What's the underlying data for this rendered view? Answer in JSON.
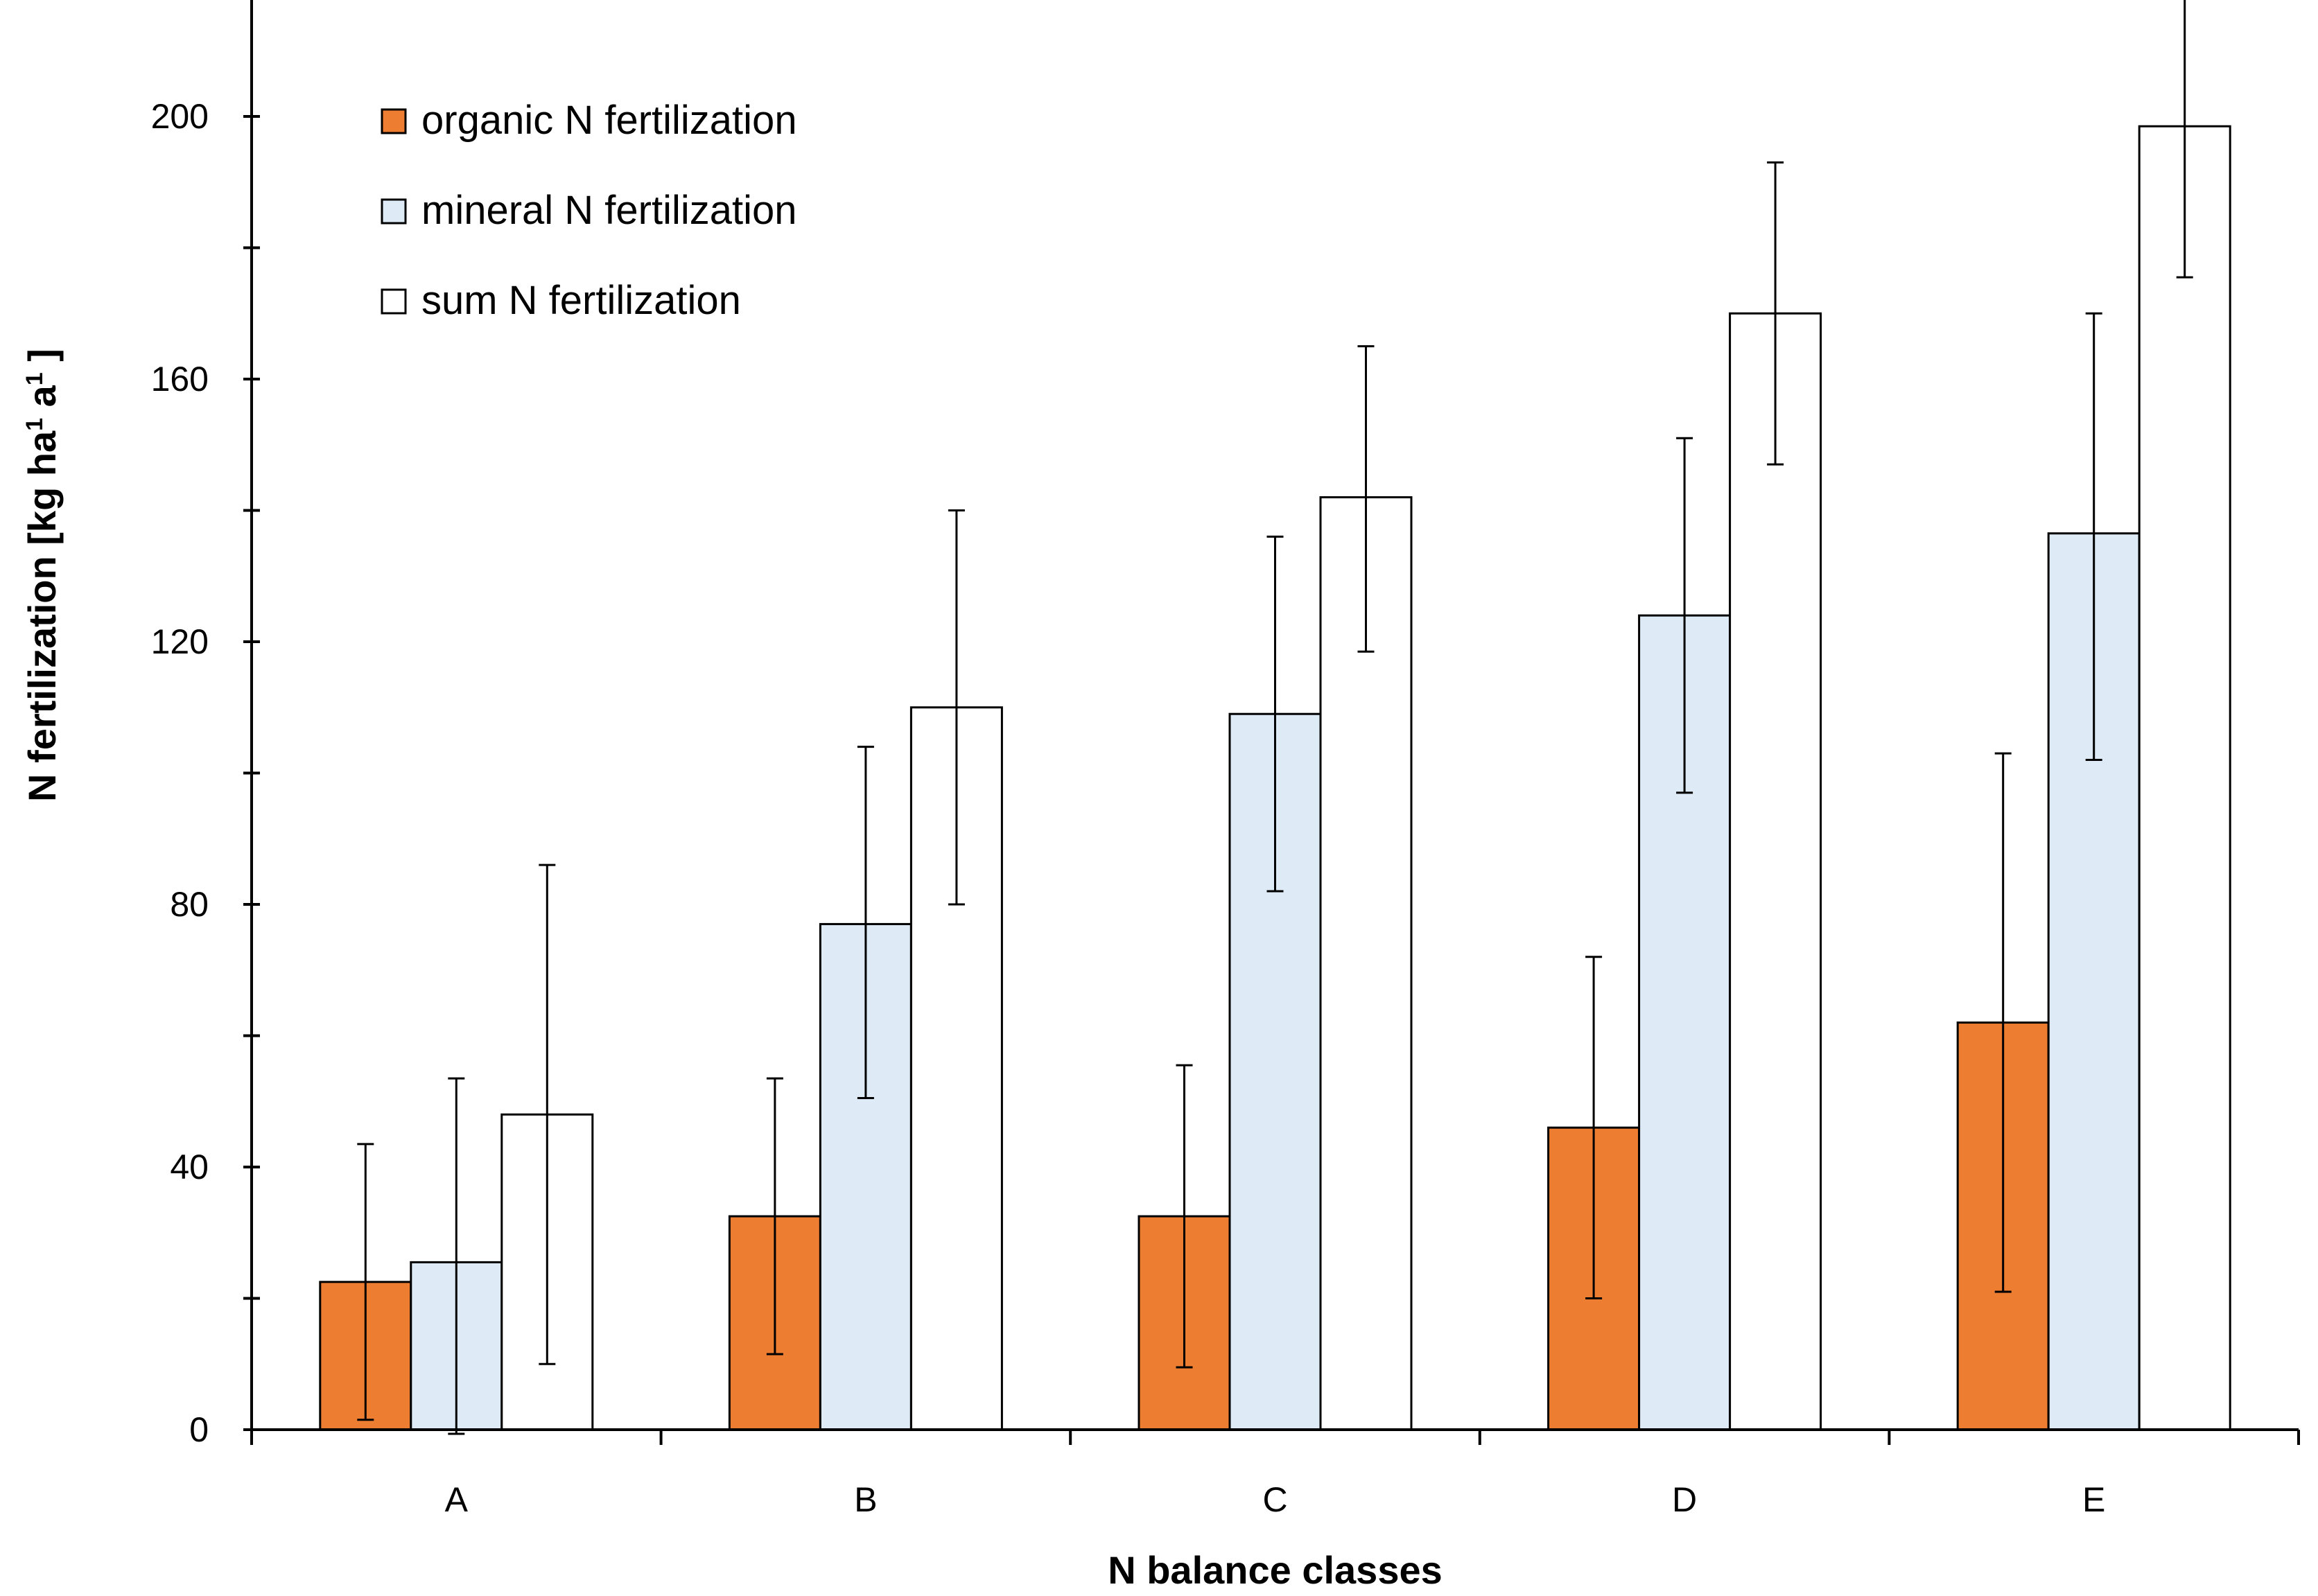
{
  "chart_data": {
    "type": "bar",
    "categories": [
      "A",
      "B",
      "C",
      "D",
      "E"
    ],
    "series": [
      {
        "name": "organic N fertilization",
        "color": "#ED7D31",
        "values": [
          22.5,
          32.5,
          32.5,
          46,
          62
        ],
        "error_low": [
          1.5,
          11.5,
          9.5,
          20,
          21
        ],
        "error_high": [
          43.5,
          53.5,
          55.5,
          72,
          103
        ]
      },
      {
        "name": "mineral N fertilization",
        "color": "#DEEBF7",
        "values": [
          25.5,
          77,
          109,
          124,
          136.5
        ],
        "error_low": [
          -2.5,
          50.5,
          82,
          97,
          102
        ],
        "error_high": [
          53.5,
          104,
          136,
          151,
          170
        ]
      },
      {
        "name": "sum N fertilization",
        "color": "#FFFFFF",
        "values": [
          48,
          110,
          142,
          170,
          198.5
        ],
        "error_low": [
          10,
          80,
          118.5,
          147,
          175.5
        ],
        "error_high": [
          86,
          140,
          165,
          193,
          222
        ]
      }
    ],
    "xlabel": "N balance classes",
    "ylabel_parts": [
      "N fertilization [kg ha",
      "1",
      " a",
      "1",
      " ]"
    ],
    "yticks": [
      "0",
      "40",
      "80",
      "120",
      "160",
      "200"
    ],
    "ylim": [
      0,
      222
    ],
    "ytick_step_labeled": 40,
    "ytick_step_minor": 20,
    "legend_position": "top-left",
    "grid": false
  }
}
